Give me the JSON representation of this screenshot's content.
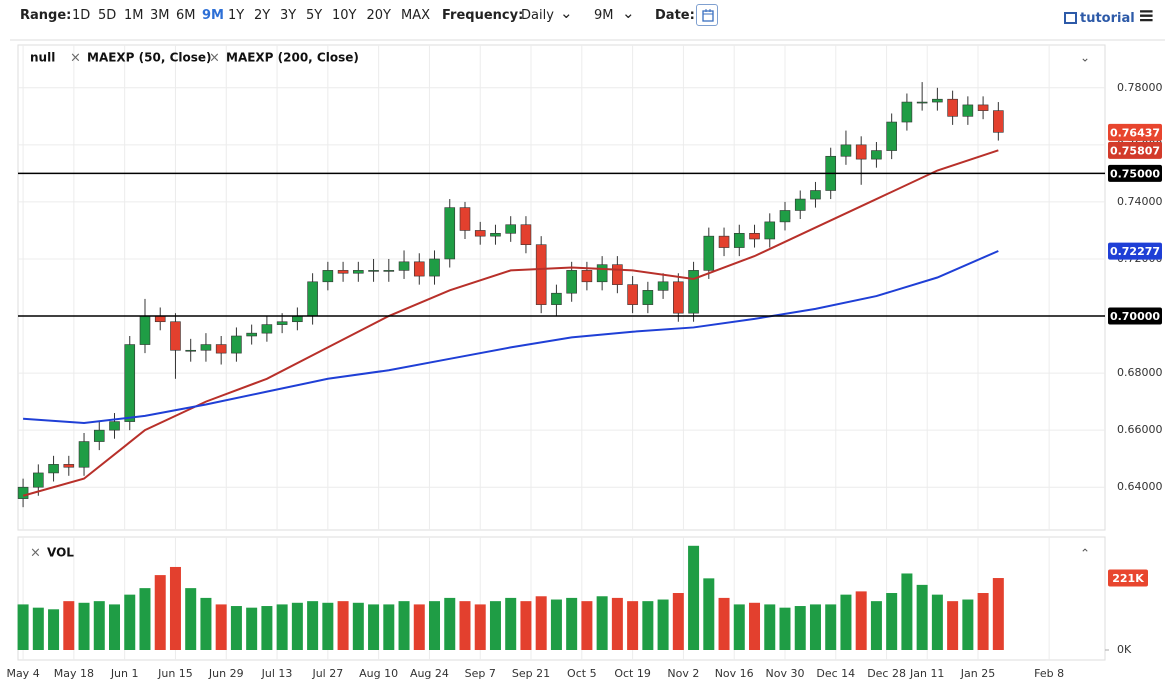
{
  "toolbar": {
    "range_label": "Range:",
    "ranges": [
      "1D",
      "5D",
      "1M",
      "3M",
      "6M",
      "9M",
      "1Y",
      "2Y",
      "3Y",
      "5Y",
      "10Y",
      "20Y",
      "MAX"
    ],
    "active_range": "9M",
    "frequency_label": "Frequency:",
    "frequency": "Daily",
    "period": "9M",
    "date_label": "Date:",
    "tutorial": "tutorial"
  },
  "chart_data": [
    {
      "type": "candlestick",
      "name": "null",
      "x": [
        0,
        3,
        6,
        9,
        12,
        15,
        18,
        21,
        24,
        27,
        30,
        33,
        36,
        39,
        42,
        45,
        48,
        51,
        54,
        57,
        60,
        63,
        66,
        69,
        72,
        75,
        78,
        81,
        84,
        87,
        90,
        93,
        96,
        99,
        102,
        105,
        108,
        111,
        114,
        117,
        120,
        123,
        126,
        129,
        132,
        135,
        138,
        141,
        144,
        147,
        150,
        153,
        156,
        159,
        162,
        165,
        168,
        171,
        174,
        177,
        180,
        183,
        186,
        189,
        192
      ],
      "open": [
        0.636,
        0.64,
        0.645,
        0.648,
        0.647,
        0.656,
        0.66,
        0.663,
        0.69,
        0.7,
        0.698,
        0.688,
        0.688,
        0.69,
        0.687,
        0.693,
        0.694,
        0.697,
        0.698,
        0.7,
        0.712,
        0.716,
        0.715,
        0.716,
        0.716,
        0.716,
        0.719,
        0.714,
        0.72,
        0.738,
        0.73,
        0.728,
        0.729,
        0.732,
        0.725,
        0.704,
        0.708,
        0.716,
        0.712,
        0.718,
        0.711,
        0.704,
        0.709,
        0.712,
        0.701,
        0.716,
        0.728,
        0.724,
        0.729,
        0.727,
        0.733,
        0.737,
        0.741,
        0.744,
        0.756,
        0.76,
        0.755,
        0.758,
        0.768,
        0.775,
        0.775,
        0.776,
        0.77,
        0.774,
        0.772
      ],
      "high": [
        0.643,
        0.648,
        0.651,
        0.651,
        0.659,
        0.663,
        0.666,
        0.693,
        0.706,
        0.703,
        0.701,
        0.692,
        0.694,
        0.693,
        0.696,
        0.697,
        0.7,
        0.701,
        0.703,
        0.715,
        0.719,
        0.719,
        0.719,
        0.72,
        0.72,
        0.723,
        0.722,
        0.723,
        0.741,
        0.74,
        0.733,
        0.732,
        0.735,
        0.735,
        0.728,
        0.711,
        0.719,
        0.719,
        0.721,
        0.721,
        0.714,
        0.712,
        0.715,
        0.715,
        0.719,
        0.731,
        0.731,
        0.732,
        0.732,
        0.736,
        0.74,
        0.744,
        0.747,
        0.759,
        0.765,
        0.763,
        0.761,
        0.771,
        0.778,
        0.782,
        0.78,
        0.779,
        0.777,
        0.777,
        0.775
      ],
      "low": [
        0.633,
        0.637,
        0.642,
        0.644,
        0.644,
        0.653,
        0.657,
        0.66,
        0.687,
        0.695,
        0.678,
        0.684,
        0.684,
        0.683,
        0.684,
        0.69,
        0.691,
        0.694,
        0.695,
        0.697,
        0.709,
        0.712,
        0.712,
        0.712,
        0.712,
        0.713,
        0.711,
        0.711,
        0.717,
        0.727,
        0.725,
        0.725,
        0.726,
        0.722,
        0.701,
        0.7,
        0.705,
        0.709,
        0.709,
        0.708,
        0.701,
        0.701,
        0.706,
        0.698,
        0.698,
        0.713,
        0.721,
        0.721,
        0.724,
        0.724,
        0.73,
        0.734,
        0.738,
        0.741,
        0.753,
        0.746,
        0.752,
        0.755,
        0.765,
        0.772,
        0.772,
        0.767,
        0.767,
        0.769,
        0.7615
      ],
      "close": [
        0.64,
        0.645,
        0.648,
        0.647,
        0.656,
        0.66,
        0.663,
        0.69,
        0.7,
        0.698,
        0.688,
        0.688,
        0.69,
        0.687,
        0.693,
        0.694,
        0.697,
        0.698,
        0.7,
        0.712,
        0.716,
        0.715,
        0.716,
        0.716,
        0.716,
        0.719,
        0.714,
        0.72,
        0.738,
        0.73,
        0.728,
        0.729,
        0.732,
        0.725,
        0.704,
        0.708,
        0.716,
        0.712,
        0.718,
        0.711,
        0.704,
        0.709,
        0.712,
        0.701,
        0.716,
        0.728,
        0.724,
        0.729,
        0.727,
        0.733,
        0.737,
        0.741,
        0.744,
        0.756,
        0.76,
        0.755,
        0.758,
        0.768,
        0.775,
        0.775,
        0.776,
        0.77,
        0.774,
        0.772,
        0.7644
      ],
      "up_color": "#1f9d45",
      "down_color": "#e3402e",
      "series": [
        {
          "name": "MAEXP (50, Close)",
          "color": "#b8302a",
          "x": [
            0,
            12,
            24,
            36,
            48,
            60,
            72,
            84,
            96,
            108,
            120,
            132,
            144,
            156,
            168,
            180,
            192
          ],
          "values": [
            0.637,
            0.643,
            0.66,
            0.67,
            0.678,
            0.689,
            0.7,
            0.709,
            0.716,
            0.717,
            0.716,
            0.713,
            0.721,
            0.731,
            0.741,
            0.751,
            0.7581
          ]
        },
        {
          "name": "MAEXP (200, Close)",
          "color": "#1f3fd6",
          "x": [
            0,
            12,
            24,
            36,
            48,
            60,
            72,
            84,
            96,
            108,
            120,
            132,
            144,
            156,
            168,
            180,
            192
          ],
          "values": [
            0.664,
            0.6625,
            0.665,
            0.669,
            0.6735,
            0.678,
            0.681,
            0.685,
            0.689,
            0.6925,
            0.6945,
            0.696,
            0.699,
            0.7025,
            0.707,
            0.7135,
            0.7228
          ]
        }
      ],
      "xlim": [
        -1,
        213
      ],
      "xticks": [
        {
          "value": 0,
          "label": "May 4"
        },
        {
          "value": 10,
          "label": "May 18"
        },
        {
          "value": 20,
          "label": "Jun 1"
        },
        {
          "value": 30,
          "label": "Jun 15"
        },
        {
          "value": 40,
          "label": "Jun 29"
        },
        {
          "value": 50,
          "label": "Jul 13"
        },
        {
          "value": 60,
          "label": "Jul 27"
        },
        {
          "value": 70,
          "label": "Aug 10"
        },
        {
          "value": 80,
          "label": "Aug 24"
        },
        {
          "value": 90,
          "label": "Sep 7"
        },
        {
          "value": 100,
          "label": "Sep 21"
        },
        {
          "value": 110,
          "label": "Oct 5"
        },
        {
          "value": 120,
          "label": "Oct 19"
        },
        {
          "value": 130,
          "label": "Nov 2"
        },
        {
          "value": 140,
          "label": "Nov 16"
        },
        {
          "value": 150,
          "label": "Nov 30"
        },
        {
          "value": 160,
          "label": "Dec 14"
        },
        {
          "value": 170,
          "label": "Dec 28"
        },
        {
          "value": 178,
          "label": "Jan 11"
        },
        {
          "value": 188,
          "label": "Jan 25"
        },
        {
          "value": 202,
          "label": "Feb 8"
        }
      ],
      "ylim": [
        0.625,
        0.795
      ],
      "yticks": [
        {
          "value": 0.64,
          "label": "0.64000"
        },
        {
          "value": 0.66,
          "label": "0.66000"
        },
        {
          "value": 0.68,
          "label": "0.68000"
        },
        {
          "value": 0.7,
          "label": "0.70000"
        },
        {
          "value": 0.72,
          "label": "0.72000"
        },
        {
          "value": 0.74,
          "label": "0.74000"
        },
        {
          "value": 0.76,
          "label": "0.76000"
        },
        {
          "value": 0.78,
          "label": "0.78000"
        }
      ],
      "hlines": [
        {
          "value": 0.75,
          "label": "0.75000",
          "color": "#000000"
        },
        {
          "value": 0.7,
          "label": "0.70000",
          "color": "#000000"
        }
      ],
      "markers": [
        {
          "value": 0.76437,
          "label": "0.76437",
          "color": "#e8452e"
        },
        {
          "value": 0.75807,
          "label": "0.75807",
          "color": "#d23a2a"
        },
        {
          "value": 0.72277,
          "label": "0.72277",
          "color": "#1f3fd6"
        }
      ],
      "grid": true
    },
    {
      "type": "bar",
      "name": "VOL",
      "x": [
        0,
        3,
        6,
        9,
        12,
        15,
        18,
        21,
        24,
        27,
        30,
        33,
        36,
        39,
        42,
        45,
        48,
        51,
        54,
        57,
        60,
        63,
        66,
        69,
        72,
        75,
        78,
        81,
        84,
        87,
        90,
        93,
        96,
        99,
        102,
        105,
        108,
        111,
        114,
        117,
        120,
        123,
        126,
        129,
        132,
        135,
        138,
        141,
        144,
        147,
        150,
        153,
        156,
        159,
        162,
        165,
        168,
        171,
        174,
        177,
        180,
        183,
        186,
        189,
        192
      ],
      "values": [
        140000,
        130000,
        125000,
        150000,
        145000,
        150000,
        140000,
        170000,
        190000,
        230000,
        255000,
        190000,
        160000,
        140000,
        135000,
        130000,
        135000,
        140000,
        145000,
        150000,
        145000,
        150000,
        145000,
        140000,
        140000,
        150000,
        140000,
        150000,
        160000,
        150000,
        140000,
        150000,
        160000,
        150000,
        165000,
        155000,
        160000,
        150000,
        165000,
        160000,
        150000,
        150000,
        155000,
        175000,
        320000,
        220000,
        160000,
        140000,
        145000,
        140000,
        130000,
        135000,
        140000,
        140000,
        170000,
        180000,
        150000,
        175000,
        235000,
        200000,
        170000,
        150000,
        155000,
        175000,
        221000
      ],
      "ylim": [
        0,
        347000
      ],
      "yticks": [
        {
          "value": 0,
          "label": "0K"
        }
      ],
      "markers": [
        {
          "value": 221000,
          "label": "221K",
          "color": "#e8452e"
        }
      ]
    }
  ]
}
